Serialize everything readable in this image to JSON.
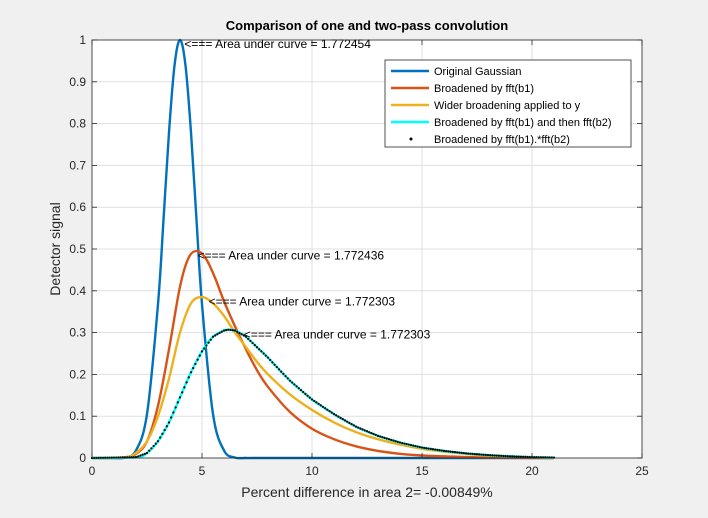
{
  "chart_data": {
    "type": "line",
    "title": "Comparison of one and two-pass convolution",
    "xlabel": "Percent difference in area 2= -0.00849%",
    "ylabel": "Detector signal",
    "xlim": [
      0,
      25
    ],
    "ylim": [
      0,
      1
    ],
    "xticks": [
      0,
      5,
      10,
      15,
      20,
      25
    ],
    "xtick_labels": [
      "0",
      "5",
      "10",
      "15",
      "20",
      "25"
    ],
    "yticks": [
      0,
      0.1,
      0.2,
      0.3,
      0.4,
      0.5,
      0.6,
      0.7,
      0.8,
      0.9,
      1
    ],
    "ytick_labels": [
      "0",
      "0.1",
      "0.2",
      "0.3",
      "0.4",
      "0.5",
      "0.6",
      "0.7",
      "0.8",
      "0.9",
      "1"
    ],
    "grid": true,
    "legend_position": "top-right",
    "series": [
      {
        "name": "Original Gaussian",
        "color": "#0072bd",
        "style": "solid",
        "x": [
          0,
          1,
          1.5,
          2,
          2.5,
          3,
          3.25,
          3.5,
          3.75,
          4,
          4.25,
          4.5,
          4.75,
          5,
          5.5,
          6,
          6.5,
          7,
          8,
          21
        ],
        "y": [
          0,
          0,
          0.001,
          0.018,
          0.105,
          0.368,
          0.57,
          0.779,
          0.939,
          1.0,
          0.939,
          0.779,
          0.57,
          0.368,
          0.105,
          0.018,
          0.001,
          0,
          0,
          0
        ]
      },
      {
        "name": "Broadened by fft(b1)",
        "color": "#d95319",
        "style": "solid",
        "x": [
          0,
          1.5,
          2,
          2.5,
          3,
          3.5,
          4,
          4.4,
          4.8,
          5.2,
          5.6,
          6,
          6.5,
          7,
          7.5,
          8,
          9,
          10,
          11,
          12,
          13,
          14,
          15,
          16,
          18,
          21
        ],
        "y": [
          0,
          0.001,
          0.01,
          0.04,
          0.125,
          0.26,
          0.41,
          0.48,
          0.495,
          0.475,
          0.43,
          0.375,
          0.315,
          0.26,
          0.21,
          0.17,
          0.11,
          0.07,
          0.045,
          0.028,
          0.017,
          0.01,
          0.006,
          0.004,
          0.001,
          0
        ]
      },
      {
        "name": "Wider broadening applied to y",
        "color": "#edb120",
        "style": "solid",
        "x": [
          0,
          1.5,
          2,
          2.5,
          3,
          3.5,
          4,
          4.5,
          5,
          5.5,
          6,
          6.5,
          7,
          7.5,
          8,
          9,
          10,
          11,
          12,
          13,
          14,
          15,
          16,
          17,
          18,
          21
        ],
        "y": [
          0,
          0.002,
          0.012,
          0.04,
          0.1,
          0.19,
          0.3,
          0.37,
          0.385,
          0.37,
          0.34,
          0.3,
          0.265,
          0.23,
          0.2,
          0.152,
          0.115,
          0.085,
          0.062,
          0.045,
          0.032,
          0.022,
          0.015,
          0.01,
          0.006,
          0
        ]
      },
      {
        "name": "Broadened by fft(b1) and then fft(b2)",
        "color": "#00ffff",
        "style": "solid",
        "x": [
          0,
          2,
          2.5,
          3,
          3.5,
          4,
          4.5,
          5,
          5.5,
          6,
          6.2,
          6.5,
          7,
          7.5,
          8,
          8.5,
          9,
          10,
          11,
          12,
          13,
          14,
          15,
          16,
          17,
          18,
          19,
          20,
          21
        ],
        "y": [
          0,
          0.002,
          0.012,
          0.04,
          0.085,
          0.145,
          0.205,
          0.255,
          0.29,
          0.305,
          0.307,
          0.305,
          0.29,
          0.265,
          0.24,
          0.212,
          0.185,
          0.14,
          0.105,
          0.075,
          0.053,
          0.037,
          0.025,
          0.017,
          0.011,
          0.007,
          0.004,
          0.002,
          0.001
        ]
      },
      {
        "name": "Broadened by fft(b1).*fft(b2)",
        "color": "#000000",
        "style": "dots",
        "x": [
          0,
          2,
          2.5,
          3,
          3.5,
          4,
          4.5,
          5,
          5.5,
          6,
          6.2,
          6.5,
          7,
          7.5,
          8,
          8.5,
          9,
          10,
          11,
          12,
          13,
          14,
          15,
          16,
          17,
          18,
          19,
          20,
          21
        ],
        "y": [
          0,
          0.002,
          0.012,
          0.04,
          0.085,
          0.145,
          0.205,
          0.255,
          0.29,
          0.305,
          0.307,
          0.305,
          0.29,
          0.265,
          0.24,
          0.212,
          0.185,
          0.14,
          0.105,
          0.075,
          0.053,
          0.037,
          0.025,
          0.017,
          0.011,
          0.007,
          0.004,
          0.002,
          0.001
        ]
      }
    ],
    "annotations": [
      {
        "text": "<=== Area under curve = 1.772454",
        "x": 4.2,
        "y": 0.99
      },
      {
        "text": "<=== Area under curve = 1.772436",
        "x": 4.8,
        "y": 0.485
      },
      {
        "text": "<=== Area under curve = 1.772303",
        "x": 5.3,
        "y": 0.375
      },
      {
        "text": "<=== Area under curve = 1.772303",
        "x": 6.9,
        "y": 0.295
      }
    ]
  }
}
